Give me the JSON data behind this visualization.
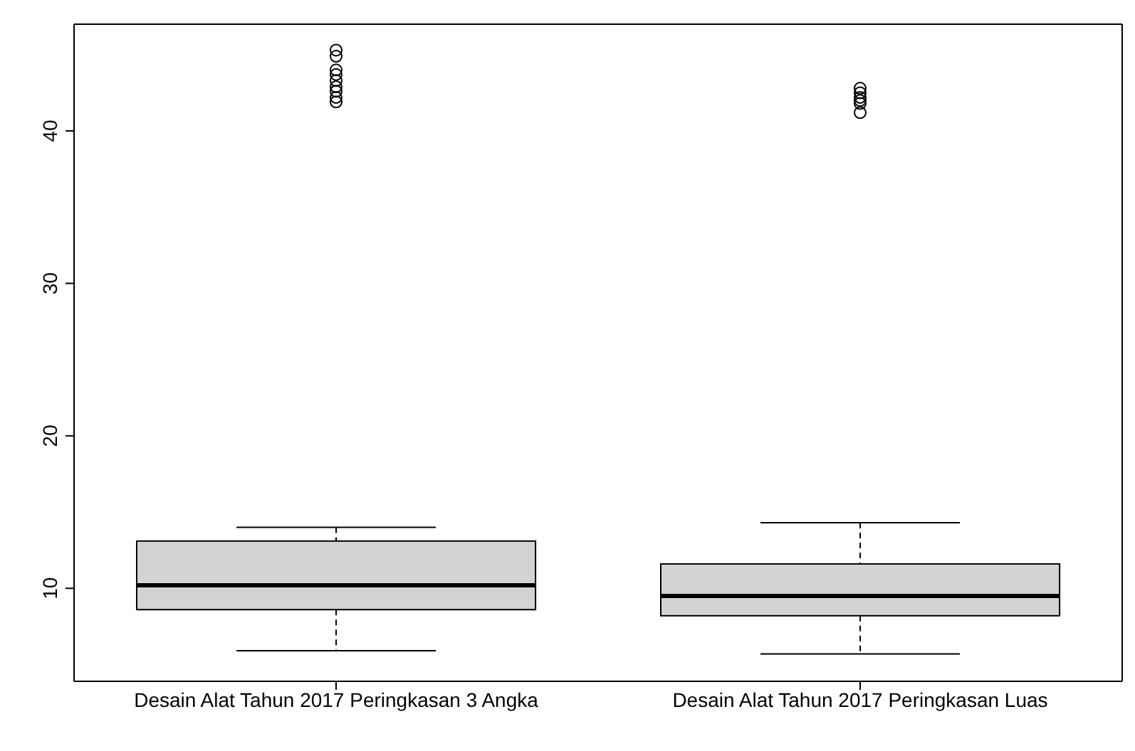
{
  "chart_data": {
    "type": "box",
    "categories": [
      "Desain Alat Tahun 2017 Peringkasan 3 Angka",
      "Desain Alat Tahun 2017 Peringkasan Luas"
    ],
    "boxes": [
      {
        "low": 5.9,
        "q1": 8.6,
        "median": 10.2,
        "q3": 13.1,
        "high": 14.0,
        "outliers": [
          45.3,
          44.9,
          44.0,
          43.7,
          43.3,
          42.9,
          42.6,
          42.2,
          41.9
        ]
      },
      {
        "low": 5.7,
        "q1": 8.2,
        "median": 9.5,
        "q3": 11.6,
        "high": 14.3,
        "outliers": [
          42.8,
          42.5,
          42.2,
          42.0,
          41.8,
          41.2
        ]
      }
    ],
    "color": "#d3d3d3",
    "ylim": [
      3.9,
      47
    ],
    "yticks": [
      10,
      20,
      30,
      40
    ],
    "grid": false
  }
}
